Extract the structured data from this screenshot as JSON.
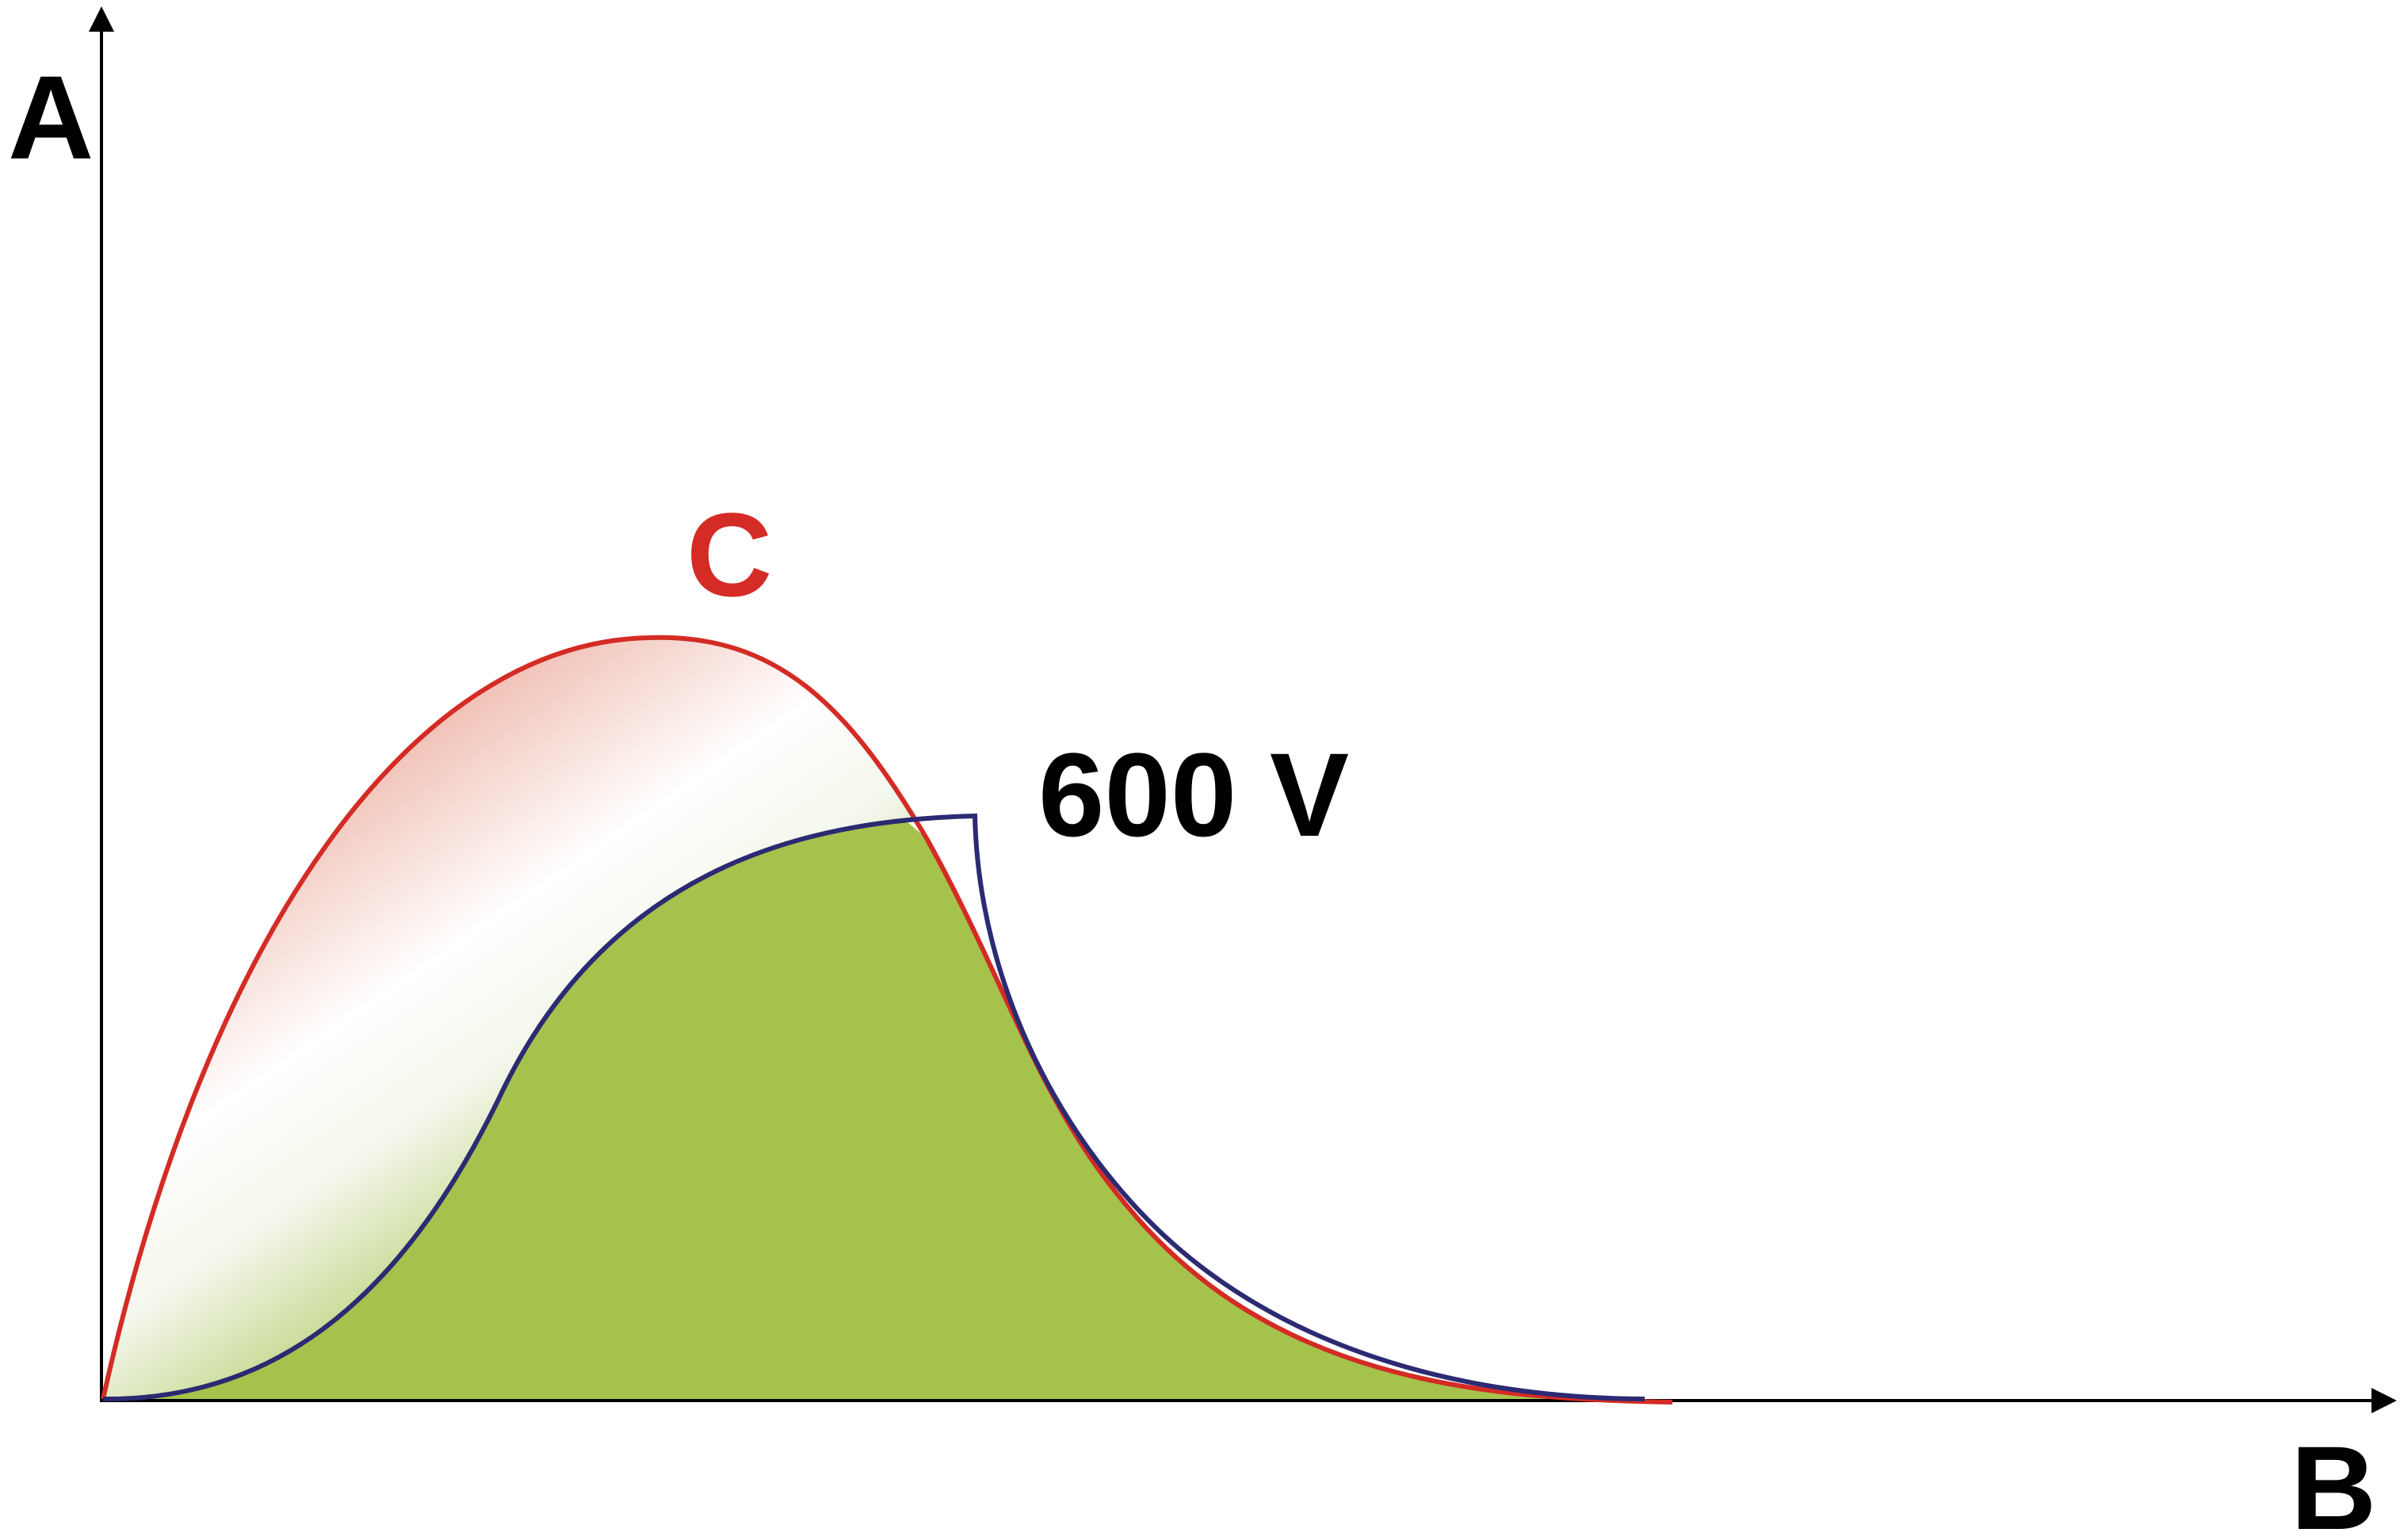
{
  "diagram": {
    "y_axis_label": "A",
    "x_axis_label": "B",
    "curve_c_label": "C",
    "value_label": "600 V"
  },
  "colors": {
    "axis": "#000000",
    "curve_c": "#d42b25",
    "curve_600v": "#2b2a72",
    "fill_green": "#a5c24c",
    "fill_red_tint": "#ecae9f",
    "fill_white": "#ffffff",
    "text_c": "#d42b25",
    "text_dark": "#000000"
  }
}
